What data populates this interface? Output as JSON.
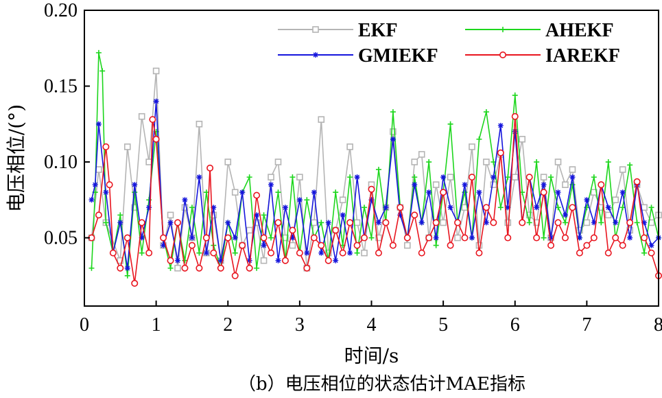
{
  "chart_data": {
    "type": "line",
    "title": "",
    "caption": "（b）电压相位的状态估计MAE指标",
    "xlabel": "时间/s",
    "ylabel": "电压相位/(°)",
    "xlim": [
      0,
      8
    ],
    "ylim": [
      0.005,
      0.2
    ],
    "x_ticks": [
      0,
      1,
      2,
      3,
      4,
      5,
      6,
      7,
      8
    ],
    "x_tick_labels": [
      "0",
      "1",
      "2",
      "3",
      "4",
      "5",
      "6",
      "7",
      "8"
    ],
    "y_ticks": [
      0.05,
      0.1,
      0.15,
      0.2
    ],
    "y_tick_labels": [
      "0.05",
      "0.10",
      "0.15",
      "0.20"
    ],
    "grid": false,
    "legend_position": "top-right",
    "series": [
      {
        "name": "EKF",
        "color": "#b4b4b4",
        "marker": "square",
        "x": [
          0.1,
          0.2,
          0.3,
          0.5,
          0.6,
          0.7,
          0.8,
          0.9,
          1.0,
          1.1,
          1.2,
          1.3,
          1.4,
          1.5,
          1.6,
          1.7,
          1.8,
          1.9,
          2.0,
          2.1,
          2.2,
          2.3,
          2.4,
          2.5,
          2.6,
          2.7,
          2.8,
          2.9,
          3.0,
          3.1,
          3.2,
          3.3,
          3.4,
          3.5,
          3.6,
          3.7,
          3.8,
          3.9,
          4.0,
          4.1,
          4.2,
          4.3,
          4.4,
          4.5,
          4.6,
          4.7,
          4.8,
          4.9,
          5.0,
          5.1,
          5.2,
          5.3,
          5.4,
          5.5,
          5.6,
          5.7,
          5.8,
          5.9,
          6.0,
          6.1,
          6.2,
          6.3,
          6.4,
          6.5,
          6.6,
          6.7,
          6.8,
          6.9,
          7.0,
          7.1,
          7.2,
          7.3,
          7.4,
          7.5,
          7.6,
          7.7,
          7.8,
          7.9,
          8.0
        ],
        "values": [
          0.05,
          0.095,
          0.06,
          0.035,
          0.11,
          0.07,
          0.13,
          0.1,
          0.16,
          0.045,
          0.065,
          0.03,
          0.07,
          0.05,
          0.125,
          0.04,
          0.065,
          0.035,
          0.1,
          0.08,
          0.045,
          0.055,
          0.06,
          0.035,
          0.09,
          0.1,
          0.05,
          0.045,
          0.09,
          0.03,
          0.06,
          0.128,
          0.04,
          0.055,
          0.075,
          0.11,
          0.06,
          0.04,
          0.085,
          0.05,
          0.07,
          0.12,
          0.07,
          0.045,
          0.1,
          0.105,
          0.05,
          0.085,
          0.06,
          0.09,
          0.05,
          0.07,
          0.11,
          0.045,
          0.1,
          0.085,
          0.105,
          0.06,
          0.09,
          0.115,
          0.065,
          0.06,
          0.09,
          0.05,
          0.1,
          0.085,
          0.095,
          0.055,
          0.06,
          0.08,
          0.07,
          0.065,
          0.075,
          0.095,
          0.055,
          0.085,
          0.07,
          0.06,
          0.065
        ]
      },
      {
        "name": "AHEKF",
        "color": "#1cd61c",
        "marker": "plus",
        "x": [
          0.1,
          0.15,
          0.2,
          0.25,
          0.3,
          0.4,
          0.5,
          0.6,
          0.7,
          0.8,
          0.9,
          1.0,
          1.1,
          1.2,
          1.3,
          1.4,
          1.5,
          1.6,
          1.7,
          1.8,
          1.9,
          2.0,
          2.1,
          2.2,
          2.3,
          2.4,
          2.5,
          2.6,
          2.7,
          2.8,
          2.9,
          3.0,
          3.1,
          3.2,
          3.3,
          3.4,
          3.5,
          3.6,
          3.7,
          3.8,
          3.9,
          4.0,
          4.1,
          4.2,
          4.3,
          4.4,
          4.5,
          4.6,
          4.7,
          4.8,
          4.9,
          5.0,
          5.1,
          5.2,
          5.3,
          5.4,
          5.5,
          5.6,
          5.7,
          5.8,
          5.9,
          6.0,
          6.1,
          6.2,
          6.3,
          6.4,
          6.5,
          6.6,
          6.7,
          6.8,
          6.9,
          7.0,
          7.1,
          7.2,
          7.3,
          7.4,
          7.5,
          7.6,
          7.7,
          7.8,
          7.9,
          8.0
        ],
        "values": [
          0.03,
          0.08,
          0.172,
          0.16,
          0.06,
          0.04,
          0.065,
          0.025,
          0.08,
          0.04,
          0.075,
          0.12,
          0.05,
          0.03,
          0.06,
          0.035,
          0.07,
          0.04,
          0.08,
          0.045,
          0.03,
          0.06,
          0.04,
          0.08,
          0.09,
          0.03,
          0.065,
          0.05,
          0.08,
          0.035,
          0.09,
          0.04,
          0.075,
          0.05,
          0.06,
          0.035,
          0.08,
          0.045,
          0.09,
          0.04,
          0.07,
          0.05,
          0.095,
          0.06,
          0.133,
          0.07,
          0.05,
          0.09,
          0.06,
          0.1,
          0.045,
          0.08,
          0.125,
          0.06,
          0.08,
          0.05,
          0.115,
          0.133,
          0.1,
          0.07,
          0.09,
          0.144,
          0.08,
          0.06,
          0.1,
          0.05,
          0.09,
          0.07,
          0.06,
          0.085,
          0.05,
          0.07,
          0.09,
          0.06,
          0.1,
          0.05,
          0.07,
          0.098,
          0.06,
          0.04,
          0.07,
          0.05
        ]
      },
      {
        "name": "GMIEKF",
        "color": "#1414dc",
        "marker": "star",
        "x": [
          0.1,
          0.15,
          0.2,
          0.3,
          0.4,
          0.5,
          0.6,
          0.7,
          0.8,
          0.9,
          1.0,
          1.1,
          1.2,
          1.3,
          1.4,
          1.5,
          1.6,
          1.7,
          1.8,
          1.9,
          2.0,
          2.1,
          2.2,
          2.3,
          2.4,
          2.5,
          2.6,
          2.7,
          2.8,
          2.9,
          3.0,
          3.1,
          3.2,
          3.3,
          3.4,
          3.5,
          3.6,
          3.7,
          3.8,
          3.9,
          4.0,
          4.1,
          4.2,
          4.3,
          4.4,
          4.5,
          4.6,
          4.7,
          4.8,
          4.9,
          5.0,
          5.1,
          5.2,
          5.3,
          5.4,
          5.5,
          5.6,
          5.7,
          5.8,
          5.9,
          6.0,
          6.1,
          6.2,
          6.3,
          6.4,
          6.5,
          6.6,
          6.7,
          6.8,
          6.9,
          7.0,
          7.1,
          7.2,
          7.3,
          7.4,
          7.5,
          7.6,
          7.7,
          7.8,
          7.9,
          8.0
        ],
        "values": [
          0.075,
          0.085,
          0.125,
          0.08,
          0.04,
          0.06,
          0.03,
          0.085,
          0.05,
          0.07,
          0.14,
          0.045,
          0.06,
          0.035,
          0.075,
          0.05,
          0.09,
          0.04,
          0.07,
          0.035,
          0.06,
          0.05,
          0.08,
          0.035,
          0.065,
          0.045,
          0.085,
          0.035,
          0.07,
          0.05,
          0.075,
          0.04,
          0.08,
          0.04,
          0.06,
          0.035,
          0.065,
          0.04,
          0.09,
          0.05,
          0.075,
          0.06,
          0.07,
          0.115,
          0.065,
          0.05,
          0.085,
          0.06,
          0.08,
          0.05,
          0.09,
          0.07,
          0.06,
          0.085,
          0.05,
          0.08,
          0.06,
          0.09,
          0.124,
          0.07,
          0.12,
          0.06,
          0.09,
          0.07,
          0.085,
          0.05,
          0.08,
          0.065,
          0.09,
          0.05,
          0.075,
          0.06,
          0.085,
          0.07,
          0.06,
          0.08,
          0.05,
          0.085,
          0.06,
          0.045,
          0.05
        ]
      },
      {
        "name": "IAREKF",
        "color": "#e8141e",
        "marker": "circle",
        "x": [
          0.1,
          0.2,
          0.3,
          0.35,
          0.4,
          0.5,
          0.6,
          0.7,
          0.8,
          0.9,
          0.95,
          1.0,
          1.1,
          1.2,
          1.3,
          1.4,
          1.5,
          1.6,
          1.7,
          1.75,
          1.8,
          1.9,
          2.0,
          2.1,
          2.2,
          2.3,
          2.4,
          2.5,
          2.6,
          2.7,
          2.8,
          2.9,
          3.0,
          3.1,
          3.2,
          3.3,
          3.4,
          3.5,
          3.6,
          3.7,
          3.8,
          3.9,
          4.0,
          4.1,
          4.2,
          4.3,
          4.4,
          4.5,
          4.6,
          4.7,
          4.8,
          4.9,
          5.0,
          5.1,
          5.2,
          5.3,
          5.4,
          5.5,
          5.6,
          5.7,
          5.8,
          5.9,
          6.0,
          6.1,
          6.2,
          6.3,
          6.4,
          6.5,
          6.6,
          6.7,
          6.8,
          6.9,
          7.0,
          7.1,
          7.2,
          7.3,
          7.4,
          7.5,
          7.6,
          7.7,
          7.8,
          7.9,
          8.0
        ],
        "values": [
          0.05,
          0.065,
          0.11,
          0.085,
          0.04,
          0.03,
          0.05,
          0.02,
          0.06,
          0.04,
          0.128,
          0.115,
          0.05,
          0.035,
          0.06,
          0.03,
          0.045,
          0.03,
          0.05,
          0.096,
          0.04,
          0.03,
          0.05,
          0.025,
          0.045,
          0.03,
          0.078,
          0.05,
          0.04,
          0.06,
          0.035,
          0.055,
          0.04,
          0.03,
          0.05,
          0.045,
          0.035,
          0.055,
          0.04,
          0.06,
          0.045,
          0.05,
          0.082,
          0.04,
          0.06,
          0.045,
          0.07,
          0.05,
          0.065,
          0.04,
          0.05,
          0.06,
          0.08,
          0.045,
          0.06,
          0.05,
          0.09,
          0.04,
          0.07,
          0.06,
          0.106,
          0.05,
          0.13,
          0.06,
          0.09,
          0.05,
          0.08,
          0.045,
          0.06,
          0.05,
          0.07,
          0.04,
          0.045,
          0.05,
          0.085,
          0.04,
          0.05,
          0.045,
          0.06,
          0.087,
          0.05,
          0.04,
          0.025
        ]
      }
    ]
  }
}
